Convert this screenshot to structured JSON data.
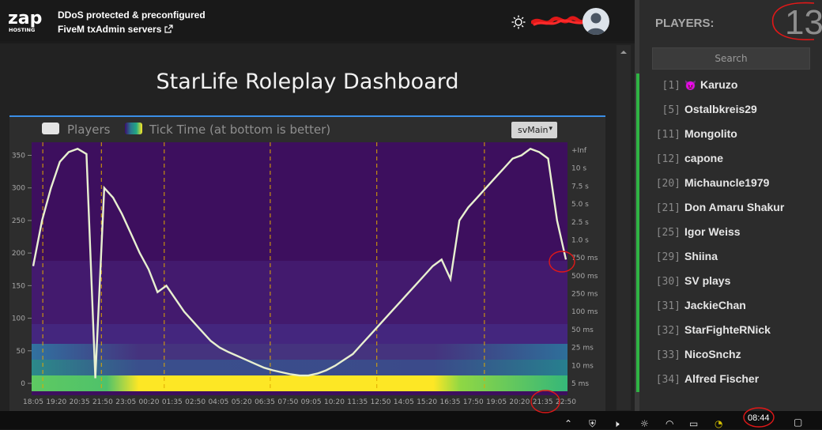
{
  "header": {
    "logo_text": "ZAP HOSTING",
    "promo_line1": "DDoS protected & preconfigured",
    "promo_line2": "FiveM txAdmin servers",
    "external_link_icon": "external-link-icon",
    "theme_icon": "sun-icon"
  },
  "dashboard": {
    "title": "StarLife Roleplay Dashboard",
    "legend_players": "Players",
    "legend_ticktime": "Tick Time (at bottom is better)",
    "thread_select": "svMain",
    "colors": {
      "accent": "#3a8ee6",
      "line": "#e8f0d0",
      "marker": "#e0a800"
    }
  },
  "chart_data": {
    "type": "line",
    "y_left": {
      "ticks": [
        "350",
        "300",
        "250",
        "200",
        "150",
        "100",
        "50",
        "0"
      ]
    },
    "y_right": {
      "ticks": [
        "+Inf",
        "10 s",
        "7.5 s",
        "5.0 s",
        "2.5 s",
        "1.0 s",
        "750 ms",
        "500 ms",
        "250 ms",
        "100 ms",
        "50 ms",
        "25 ms",
        "10 ms",
        "5 ms"
      ]
    },
    "x_ticks": [
      "18:05",
      "19:20",
      "20:35",
      "21:50",
      "23:05",
      "00:20",
      "01:35",
      "02:50",
      "04:05",
      "05:20",
      "06:35",
      "07:50",
      "09:05",
      "10:20",
      "11:35",
      "12:50",
      "14:05",
      "15:20",
      "16:35",
      "17:50",
      "19:05",
      "20:20",
      "21:35",
      "22:50"
    ],
    "series": [
      {
        "values": [
          180,
          250,
          300,
          340,
          355,
          360,
          352,
          8,
          300,
          285,
          260,
          230,
          200,
          175,
          140,
          150,
          130,
          110,
          95,
          80,
          65,
          55,
          48,
          42,
          36,
          30,
          24,
          20,
          17,
          14,
          12,
          12,
          15,
          20,
          27,
          36,
          45,
          60,
          75,
          90,
          105,
          120,
          135,
          150,
          165,
          180,
          190,
          160,
          250,
          270,
          285,
          300,
          315,
          330,
          345,
          350,
          360,
          355,
          345,
          250,
          190
        ]
      }
    ]
  },
  "players": {
    "heading": "PLAYERS:",
    "count": "13",
    "search_placeholder": "Search",
    "list": [
      {
        "id": "[1]",
        "name": "Karuzo",
        "icon": "devil-icon"
      },
      {
        "id": "[5]",
        "name": "Ostalbkreis29"
      },
      {
        "id": "[11]",
        "name": "Mongolito"
      },
      {
        "id": "[12]",
        "name": "capone"
      },
      {
        "id": "[20]",
        "name": "Michauncle1979"
      },
      {
        "id": "[21]",
        "name": "Don Amaru Shakur"
      },
      {
        "id": "[25]",
        "name": "Igor Weiss"
      },
      {
        "id": "[29]",
        "name": "Shiina"
      },
      {
        "id": "[30]",
        "name": "SV plays"
      },
      {
        "id": "[31]",
        "name": "JackieChan"
      },
      {
        "id": "[32]",
        "name": "StarFighteRNick"
      },
      {
        "id": "[33]",
        "name": "NicoSnchz"
      },
      {
        "id": "[34]",
        "name": "Alfred Fischer"
      }
    ]
  },
  "taskbar": {
    "time": "08:44"
  }
}
